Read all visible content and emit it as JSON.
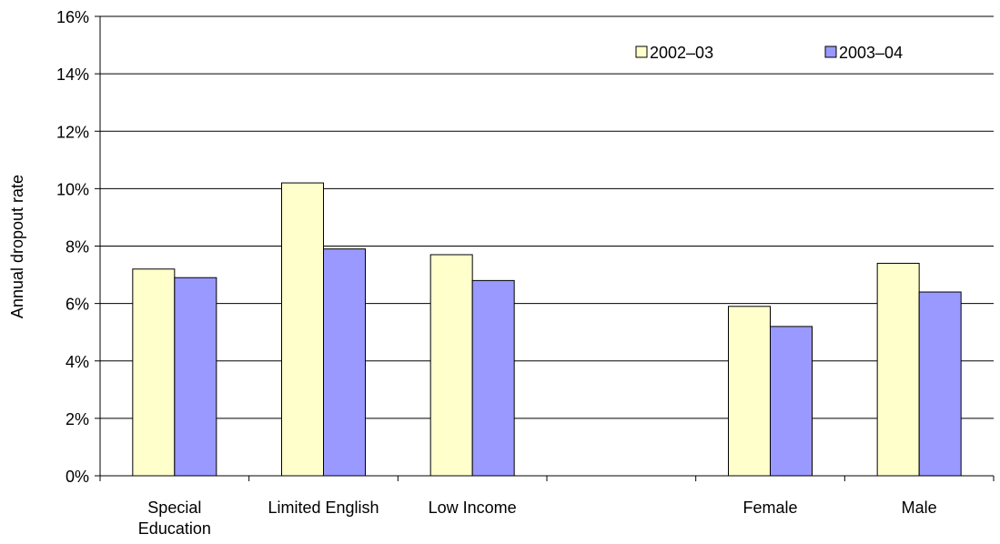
{
  "chart_data": {
    "type": "bar",
    "title": "",
    "xlabel": "",
    "ylabel": "Annual dropout rate",
    "ylim": [
      0,
      16
    ],
    "y_tick_values": [
      0,
      2,
      4,
      6,
      8,
      10,
      12,
      14,
      16
    ],
    "y_tick_labels": [
      "0%",
      "2%",
      "4%",
      "6%",
      "8%",
      "10%",
      "12%",
      "14%",
      "16%"
    ],
    "categories": [
      "Special Education",
      "Limited English",
      "Low Income",
      "",
      "Female",
      "Male"
    ],
    "category_label_lines": [
      [
        "Special",
        "Education"
      ],
      [
        "Limited English"
      ],
      [
        "Low Income"
      ],
      [],
      [
        "Female"
      ],
      [
        "Male"
      ]
    ],
    "series": [
      {
        "name": "2002–03",
        "color": "#ffffcc",
        "values": [
          7.2,
          10.2,
          7.7,
          null,
          5.9,
          7.4
        ]
      },
      {
        "name": "2003–04",
        "color": "#9999ff",
        "values": [
          6.9,
          7.9,
          6.8,
          null,
          5.2,
          6.4
        ]
      }
    ],
    "grid": true,
    "legend_position": "top-right",
    "colors": {
      "gridline": "#000000",
      "axis": "#000000",
      "bar_outline": "#000000"
    }
  }
}
